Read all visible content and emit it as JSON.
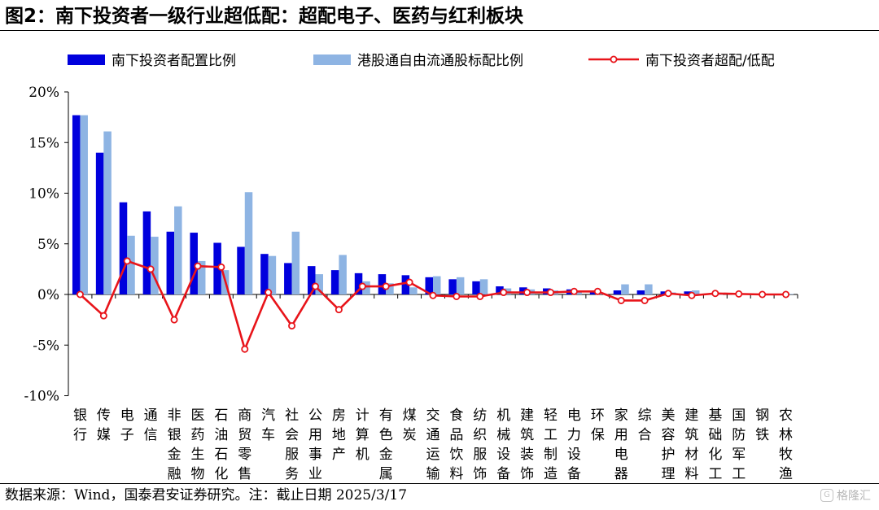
{
  "title": "图2：南下投资者一级行业超低配：超配电子、医药与红利板块",
  "source": "数据来源：Wind，国泰君安证券研究。注：截止日期 2025/3/17",
  "watermark": {
    "icon": "gelonghui-logo-icon",
    "text": "格隆汇"
  },
  "colors": {
    "primary": "#0000DD",
    "secondary": "#8EB4E3",
    "line": "#E8141A",
    "marker_fill": "#FFFFFF"
  },
  "chart_data": {
    "type": "bar",
    "title": "图2：南下投资者一级行业超低配：超配电子、医药与红利板块",
    "xlabel": "",
    "ylabel": "",
    "ylim": [
      -10,
      20
    ],
    "yticks": [
      -10,
      -5,
      0,
      5,
      10,
      15,
      20
    ],
    "ytick_labels": [
      "-10%",
      "-5%",
      "0%",
      "5%",
      "10%",
      "15%",
      "20%"
    ],
    "grid": false,
    "legend_position": "top",
    "categories": [
      "银行",
      "传媒",
      "电子",
      "通信",
      "非银金融",
      "医药生物",
      "石油石化",
      "商贸零售",
      "汽车",
      "社会服务",
      "公用事业",
      "房地产",
      "计算机",
      "有色金属",
      "煤炭",
      "交通运输",
      "食品饮料",
      "纺织服饰",
      "机械设备",
      "建筑装饰",
      "轻工制造",
      "电力设备",
      "环保",
      "家用电器",
      "综合",
      "美容护理",
      "建筑材料",
      "基础化工",
      "国防军工",
      "钢铁",
      "农林牧渔"
    ],
    "series": [
      {
        "name": "南下投资者配置比例",
        "type": "bar",
        "values": [
          17.7,
          14.0,
          9.1,
          8.2,
          6.2,
          6.1,
          5.1,
          4.7,
          4.0,
          3.1,
          2.8,
          2.4,
          2.1,
          2.0,
          1.9,
          1.7,
          1.5,
          1.3,
          0.8,
          0.7,
          0.6,
          0.5,
          0.4,
          0.4,
          0.4,
          0.3,
          0.3,
          0.1,
          0.1,
          0.05,
          0.05
        ]
      },
      {
        "name": "港股通自由流通股标配比例",
        "type": "bar",
        "values": [
          17.7,
          16.1,
          5.8,
          5.7,
          8.7,
          3.3,
          2.4,
          10.1,
          3.8,
          6.2,
          2.0,
          3.9,
          1.3,
          1.1,
          0.7,
          1.8,
          1.7,
          1.5,
          0.6,
          0.5,
          0.4,
          0.2,
          0.1,
          1.0,
          1.0,
          0.2,
          0.4,
          0.0,
          0.05,
          0.05,
          0.05
        ]
      },
      {
        "name": "南下投资者超配/低配",
        "type": "line",
        "values": [
          0.0,
          -2.1,
          3.3,
          2.5,
          -2.5,
          2.8,
          2.7,
          -5.4,
          0.2,
          -3.1,
          0.8,
          -1.5,
          0.8,
          0.8,
          1.2,
          -0.1,
          -0.2,
          -0.2,
          0.2,
          0.2,
          0.2,
          0.3,
          0.3,
          -0.6,
          -0.6,
          0.1,
          -0.1,
          0.1,
          0.05,
          0.0,
          0.0
        ]
      }
    ]
  }
}
